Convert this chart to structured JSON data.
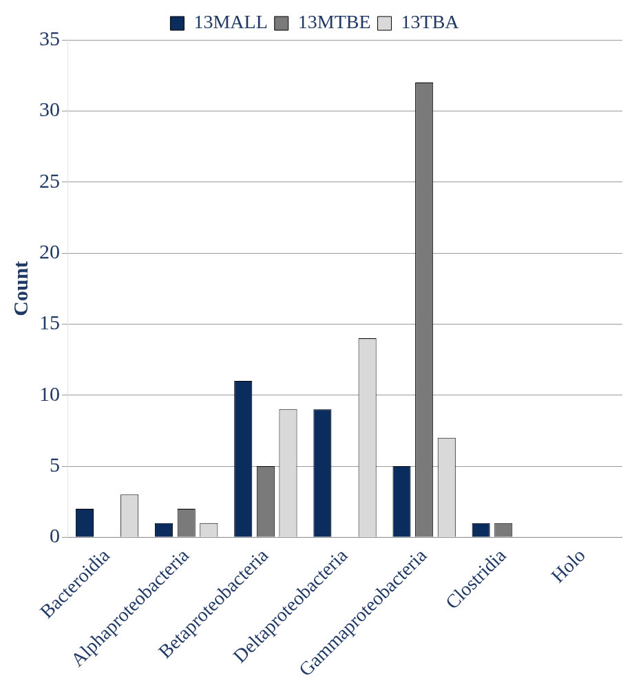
{
  "chart_data": {
    "type": "bar",
    "ylabel": "Count",
    "categories": [
      "Bacteroidia",
      "Alphaproteobacteria",
      "Betaproteobacteria",
      "Deltaproteobacteria",
      "Gammaproteobacteria",
      "Clostridia",
      "Holo"
    ],
    "series": [
      {
        "name": "13MALL",
        "color": "#0b2d5e",
        "values": [
          2,
          1,
          11,
          9,
          5,
          1,
          null
        ]
      },
      {
        "name": "13MTBE",
        "color": "#7a7a7a",
        "values": [
          0,
          2,
          5,
          0,
          32,
          1,
          null
        ]
      },
      {
        "name": "13TBA",
        "color": "#d9d9d9",
        "values": [
          3,
          1,
          9,
          14,
          7,
          0,
          null
        ]
      }
    ],
    "ylim": [
      0,
      35
    ],
    "yticks": [
      0,
      5,
      10,
      15,
      20,
      25,
      30,
      35
    ],
    "grid": "y",
    "legend": "top"
  }
}
